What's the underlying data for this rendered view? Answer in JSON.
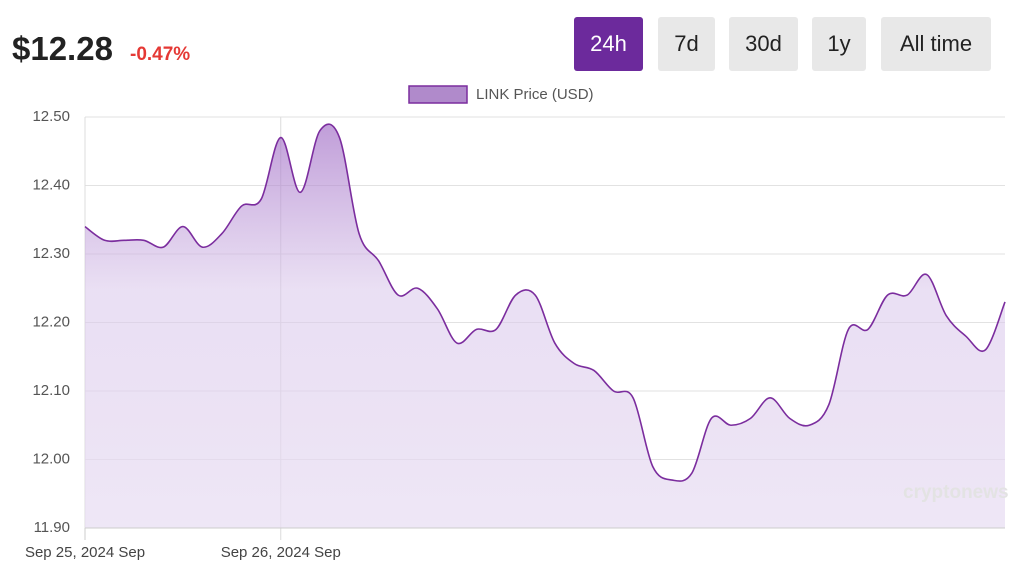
{
  "header": {
    "price": "$12.28",
    "change": "-0.47%"
  },
  "buttons": [
    "24h",
    "7d",
    "30d",
    "1y",
    "All time"
  ],
  "watermark": "cryptonews",
  "chart_data": {
    "type": "line",
    "categories": [
      "Sep 25, 2024 Sep",
      null,
      null,
      null,
      null,
      null,
      null,
      null,
      null,
      null,
      "Sep 26, 2024 Sep",
      null,
      null,
      null,
      null,
      null,
      null,
      null,
      null,
      null,
      null,
      null,
      null,
      null,
      null,
      null,
      null,
      null,
      null,
      null,
      null,
      null,
      null,
      null,
      null,
      null,
      null,
      null,
      null,
      null,
      null,
      null,
      null,
      null,
      null,
      null,
      null,
      null
    ],
    "series": [
      {
        "name": "LINK Price (USD)",
        "color": "#7b2d9e",
        "values": [
          12.34,
          12.32,
          12.32,
          12.32,
          12.31,
          12.34,
          12.31,
          12.33,
          12.37,
          12.38,
          12.47,
          12.39,
          12.48,
          12.47,
          12.33,
          12.29,
          12.24,
          12.25,
          12.22,
          12.17,
          12.19,
          12.19,
          12.24,
          12.24,
          12.17,
          12.14,
          12.13,
          12.1,
          12.09,
          11.99,
          11.97,
          11.98,
          12.06,
          12.05,
          12.06,
          12.09,
          12.06,
          12.05,
          12.08,
          12.19,
          12.19,
          12.24,
          12.24,
          12.27,
          12.21,
          12.18,
          12.16,
          12.23
        ]
      }
    ],
    "ylim": [
      11.9,
      12.5
    ],
    "yticks": [
      {
        "value": 11.9,
        "label": "11.90"
      },
      {
        "value": 12,
        "label": "12.00"
      },
      {
        "value": 12.1,
        "label": "12.10"
      },
      {
        "value": 12.2,
        "label": "12.20"
      },
      {
        "value": 12.3,
        "label": "12.30"
      },
      {
        "value": 12.4,
        "label": "12.40"
      },
      {
        "value": 12.5,
        "label": "12.50"
      }
    ],
    "grid": true
  }
}
